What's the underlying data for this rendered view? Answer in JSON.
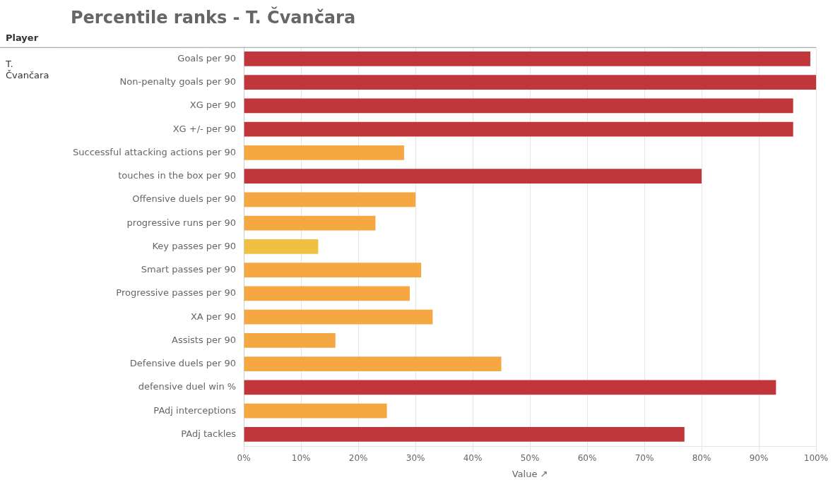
{
  "chart_data": {
    "type": "bar",
    "orientation": "horizontal",
    "title": "Percentile ranks - T. Čvančara",
    "annotations": [
      "Player",
      "T.\nČvančara"
    ],
    "xlabel": "Value ↗",
    "categories": [
      "Goals per 90",
      "Non-penalty goals per 90",
      "XG per 90",
      "XG +/- per 90",
      "Successful attacking actions per 90",
      "touches in the box per 90",
      "Offensive duels per 90",
      "progressive runs per 90",
      "Key passes per 90",
      "Smart passes per 90",
      "Progressive passes per 90",
      "XA per 90",
      "Assists per 90",
      "Defensive duels per 90",
      "defensive duel win %",
      "PAdj interceptions",
      "PAdj tackles"
    ],
    "values": [
      99,
      100,
      96,
      96,
      28,
      80,
      30,
      23,
      13,
      31,
      29,
      33,
      16,
      45,
      93,
      25,
      77
    ],
    "colors": [
      "#c0363a",
      "#c0363a",
      "#c0363a",
      "#c0363a",
      "#f5a742",
      "#c0363a",
      "#f5a742",
      "#f5a742",
      "#f0c040",
      "#f5a742",
      "#f5a742",
      "#f5a742",
      "#f5a742",
      "#f5a742",
      "#c0363a",
      "#f5a742",
      "#c0363a"
    ],
    "xlim": [
      0,
      100
    ],
    "xticks": [
      {
        "value": 0,
        "label": "0%"
      },
      {
        "value": 10,
        "label": "10%"
      },
      {
        "value": 20,
        "label": "20%"
      },
      {
        "value": 30,
        "label": "30%"
      },
      {
        "value": 40,
        "label": "40%"
      },
      {
        "value": 50,
        "label": "50%"
      },
      {
        "value": 60,
        "label": "60%"
      },
      {
        "value": 70,
        "label": "70%"
      },
      {
        "value": 80,
        "label": "80%"
      },
      {
        "value": 90,
        "label": "90%"
      },
      {
        "value": 100,
        "label": "100%"
      }
    ],
    "grid": true
  }
}
